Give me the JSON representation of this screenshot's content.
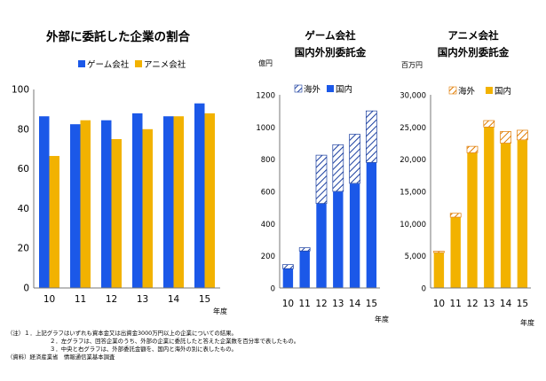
{
  "chart_data": [
    {
      "type": "bar",
      "title": "外部に委託した企業の割合",
      "categories": [
        "10",
        "11",
        "12",
        "13",
        "14",
        "15"
      ],
      "series": [
        {
          "name": "ゲーム会社",
          "values": [
            86.5,
            82.5,
            84.5,
            88,
            86.5,
            93
          ],
          "color": "#1b58e8"
        },
        {
          "name": "アニメ会社",
          "values": [
            66.5,
            84.5,
            75,
            80,
            86.5,
            88
          ],
          "color": "#f2b200"
        }
      ],
      "ylim": [
        0,
        100
      ],
      "yticks": [
        0,
        20,
        40,
        60,
        80,
        100
      ],
      "xlabel": "年度",
      "ylabel": "",
      "legend_position": "top-center",
      "grid": false
    },
    {
      "type": "bar",
      "stacked": true,
      "title_lines": [
        "ゲーム会社",
        "国内外別委託金"
      ],
      "unit_label": "億円",
      "categories": [
        "10",
        "11",
        "12",
        "13",
        "14",
        "15"
      ],
      "series": [
        {
          "name": "国内",
          "values": [
            120,
            230,
            525,
            600,
            650,
            780
          ],
          "color": "#1b58e8",
          "pattern": "solid"
        },
        {
          "name": "海外",
          "values": [
            25,
            20,
            300,
            290,
            305,
            320
          ],
          "color": "#1b58e8",
          "pattern": "hatch"
        }
      ],
      "ylim": [
        0,
        1200
      ],
      "yticks": [
        0,
        200,
        400,
        600,
        800,
        1000,
        1200
      ],
      "xlabel": "年度",
      "legend_position": "top-left",
      "grid": false
    },
    {
      "type": "bar",
      "stacked": true,
      "title_lines": [
        "アニメ会社",
        "国内外別委託金"
      ],
      "unit_label": "百万円",
      "categories": [
        "10",
        "11",
        "12",
        "13",
        "14",
        "15"
      ],
      "series": [
        {
          "name": "国内",
          "values": [
            5500,
            11000,
            21000,
            25000,
            22500,
            23000
          ],
          "color": "#f2b200",
          "pattern": "solid"
        },
        {
          "name": "海外",
          "values": [
            200,
            600,
            1000,
            1000,
            1800,
            1500
          ],
          "color": "#f2b200",
          "pattern": "hatch"
        }
      ],
      "ylim": [
        0,
        30000
      ],
      "yticks": [
        "0",
        "5,000",
        "10,000",
        "15,000",
        "20,000",
        "25,000",
        "30,000"
      ],
      "xlabel": "年度",
      "legend_position": "top-left",
      "grid": false
    }
  ],
  "notes": [
    "（注）１．上記グラフはいずれも資本金又は出資金3000万円以上の企業についての結果。",
    "２．左グラフは、回答企業のうち、外部の企業に委託したと答えた企業数を百分率で表したもの。",
    "３．中央と右グラフは、外部委託金額を、国内と海外の別に表したもの。",
    "（資料）経済産業省　情報通信業基本調査"
  ]
}
